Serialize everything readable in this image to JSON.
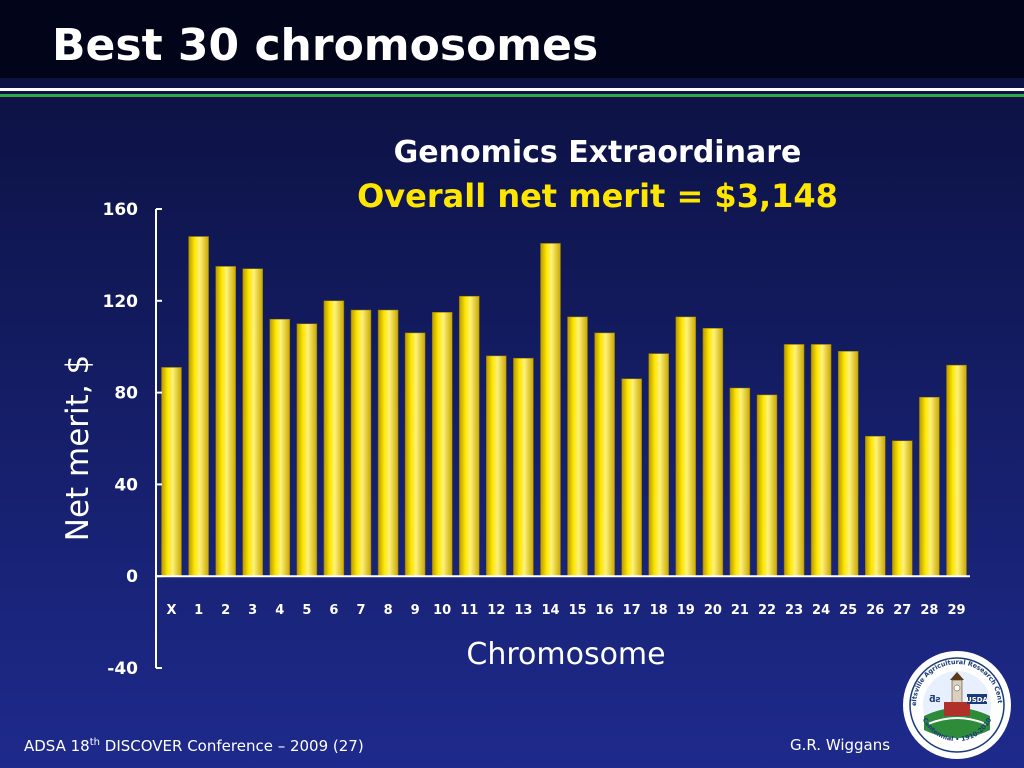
{
  "slide": {
    "title": "Best 30 chromosomes"
  },
  "footer": {
    "conference_prefix": "ADSA 18",
    "conference_superscript": "th",
    "conference_suffix": " DISCOVER Conference – 2009 (27)",
    "author": "G.R. Wiggans"
  },
  "logo": {
    "ring_text_top": "Beltsville Agricultural Research Center",
    "ring_text_bottom": "Centennial • 1910-2010",
    "badge": "USDA"
  },
  "colors": {
    "bar": "#ffe600",
    "subtitle": "#ffe600",
    "green_rule": "#2fa84a"
  },
  "chart_data": {
    "type": "bar",
    "title": "Genomics Extraordinare",
    "subtitle": "Overall net merit = $3,148",
    "xlabel": "Chromosome",
    "ylabel": "Net merit, $",
    "ylim": [
      -40,
      160
    ],
    "yticks": [
      "160",
      "120",
      "80",
      "40",
      "0",
      "-40"
    ],
    "ytick_values": [
      160,
      120,
      80,
      40,
      0,
      -40
    ],
    "categories": [
      "X",
      "1",
      "2",
      "3",
      "4",
      "5",
      "6",
      "7",
      "8",
      "9",
      "10",
      "11",
      "12",
      "13",
      "14",
      "15",
      "16",
      "17",
      "18",
      "19",
      "20",
      "21",
      "22",
      "23",
      "24",
      "25",
      "26",
      "27",
      "28",
      "29"
    ],
    "values": [
      91,
      148,
      135,
      134,
      112,
      110,
      120,
      116,
      116,
      106,
      115,
      122,
      96,
      95,
      145,
      113,
      106,
      86,
      97,
      113,
      108,
      82,
      79,
      101,
      101,
      98,
      61,
      59,
      78,
      92
    ],
    "grid": false,
    "legend": "none"
  }
}
